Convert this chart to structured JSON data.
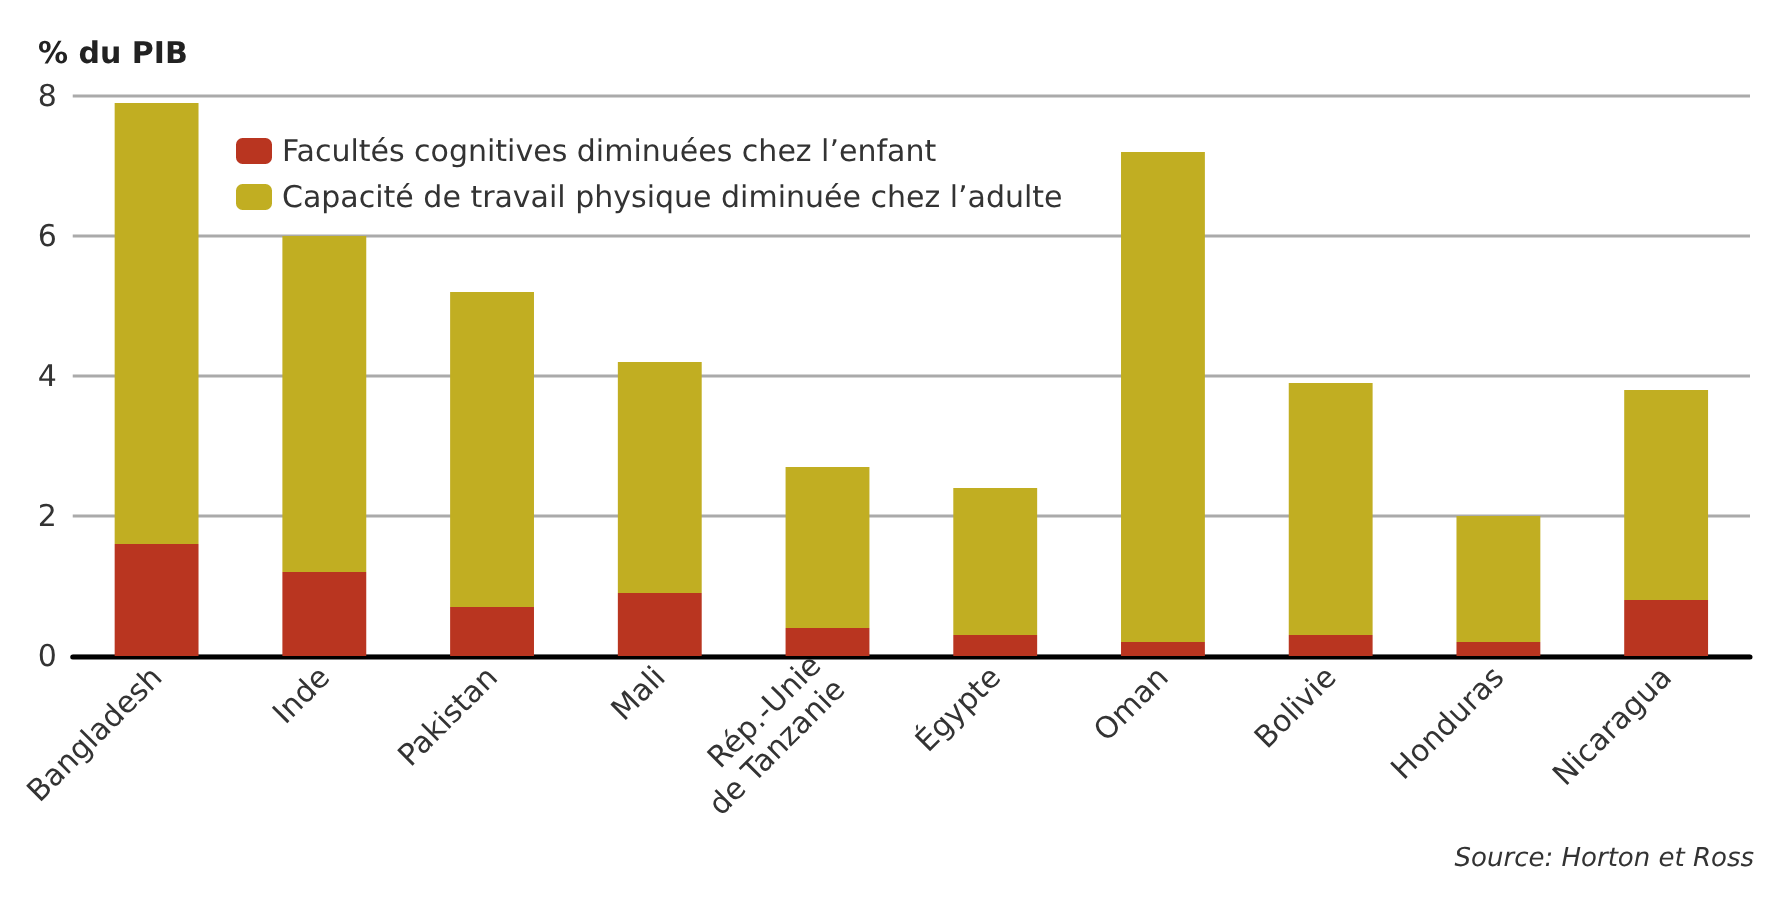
{
  "chart_data": {
    "type": "bar",
    "stacked": true,
    "ylabel": "% du PIB",
    "categories": [
      "Bangladesh",
      "Inde",
      "Pakistan",
      "Mali",
      "Rép.-Unie\nde Tanzanie",
      "Égypte",
      "Oman",
      "Bolivie",
      "Honduras",
      "Nicaragua"
    ],
    "series": [
      {
        "name": "Facultés cognitives diminuées chez l’enfant",
        "color": "#b93520",
        "values": [
          1.6,
          1.2,
          0.7,
          0.9,
          0.4,
          0.3,
          0.2,
          0.3,
          0.2,
          0.8
        ]
      },
      {
        "name": "Capacité de travail physique diminuée chez l’adulte",
        "color": "#c1ae22",
        "values": [
          6.3,
          4.8,
          4.5,
          3.3,
          2.3,
          2.1,
          7.0,
          3.6,
          1.8,
          3.0
        ]
      }
    ],
    "ylim": [
      0,
      8
    ],
    "yticks": [
      0,
      2,
      4,
      6,
      8
    ],
    "grid": "y",
    "legend": "top left",
    "annotations": [
      "Source: Horton et Ross"
    ]
  }
}
